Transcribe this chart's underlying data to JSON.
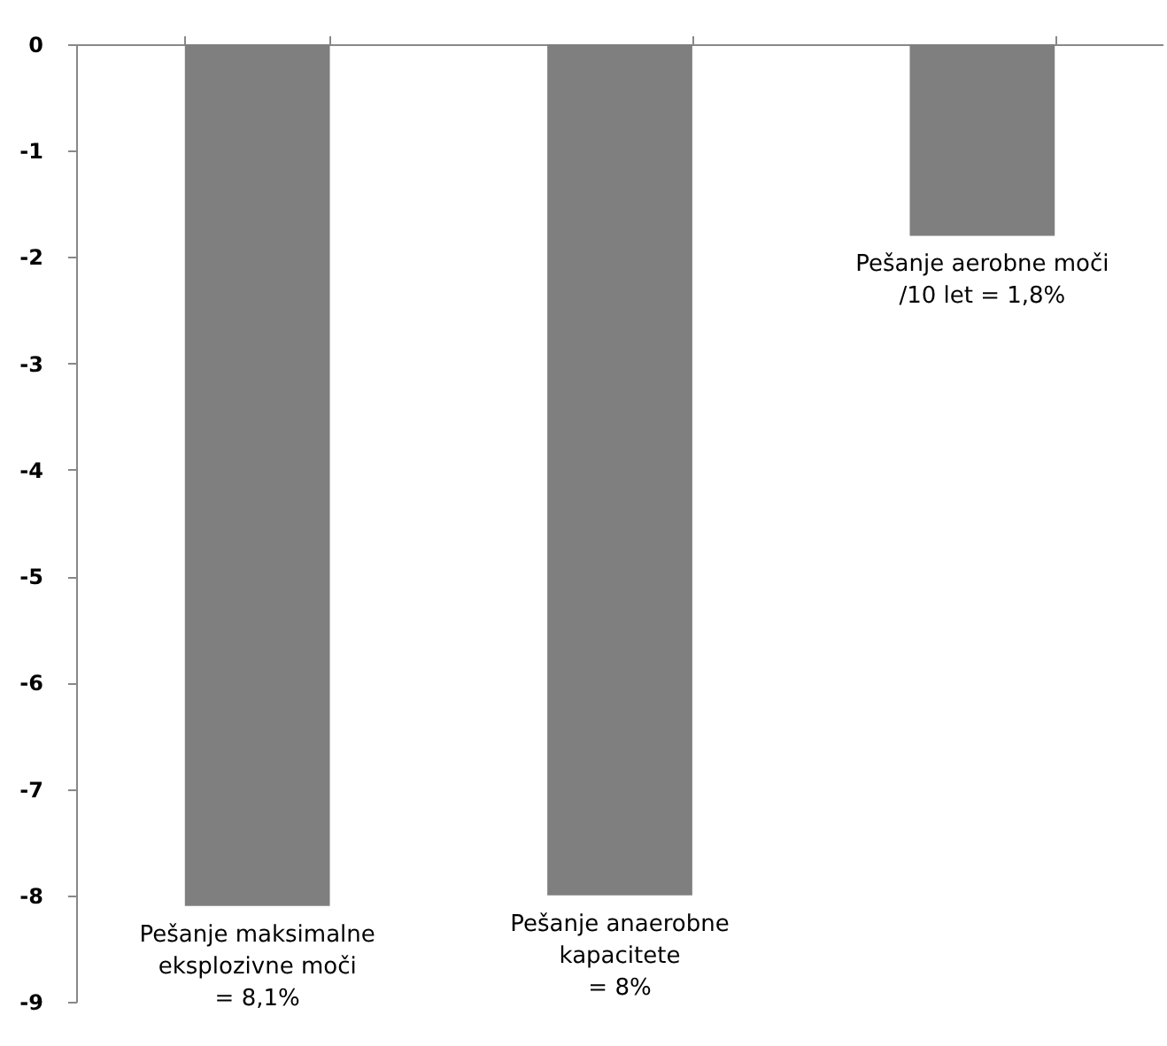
{
  "chart_data": {
    "type": "bar",
    "categories": [
      null,
      null,
      null
    ],
    "values": [
      -8.1,
      -8,
      -1.8
    ],
    "color": "#7f7f7f",
    "annotations": [
      {
        "text": "Pešanje maksimalne\neksplozivne moči\n= 8,1%",
        "y": -8.1
      },
      {
        "text": "Pešanje anaerobne\nkapacitete\n= 8%",
        "y": -8
      },
      {
        "text": "Pešanje aerobne moči\n/10 let = 1,8%",
        "y": -1.8
      }
    ],
    "ylim": [
      -9,
      0
    ],
    "yticks": [
      0,
      -1,
      -2,
      -3,
      -4,
      -5,
      -6,
      -7,
      -8,
      -9
    ],
    "grid": false,
    "tick_labels": "y"
  }
}
